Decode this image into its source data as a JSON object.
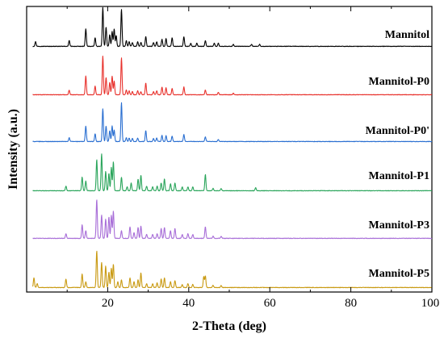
{
  "chart_data": {
    "type": "line",
    "title": "",
    "xlabel": "2-Theta (deg)",
    "ylabel": "Intensity (a.u.)",
    "xlim": [
      0,
      100
    ],
    "x_ticks": [
      20,
      40,
      60,
      80,
      100
    ],
    "x_tick_labels": [
      "20",
      "40",
      "60",
      "80",
      "100"
    ],
    "y_ticks_shown": false,
    "grid": false,
    "legend": "inline labels right of each stacked trace",
    "stacked": true,
    "series": [
      {
        "name": "Mannitol",
        "color": "#000000",
        "baseline": 0.0,
        "peaks": [
          [
            2.2,
            0.12
          ],
          [
            10.5,
            0.15
          ],
          [
            14.6,
            0.45
          ],
          [
            16.9,
            0.22
          ],
          [
            18.8,
            1.0
          ],
          [
            19.6,
            0.5
          ],
          [
            20.5,
            0.3
          ],
          [
            21.1,
            0.38
          ],
          [
            21.6,
            0.45
          ],
          [
            22.1,
            0.28
          ],
          [
            23.4,
            0.95
          ],
          [
            24.6,
            0.15
          ],
          [
            25.3,
            0.12
          ],
          [
            26.1,
            0.1
          ],
          [
            27.4,
            0.12
          ],
          [
            28.2,
            0.1
          ],
          [
            29.4,
            0.25
          ],
          [
            31.3,
            0.1
          ],
          [
            32.1,
            0.12
          ],
          [
            33.4,
            0.18
          ],
          [
            34.4,
            0.2
          ],
          [
            35.9,
            0.22
          ],
          [
            38.8,
            0.25
          ],
          [
            40.5,
            0.08
          ],
          [
            42.0,
            0.08
          ],
          [
            44.1,
            0.15
          ],
          [
            46.3,
            0.08
          ],
          [
            47.3,
            0.08
          ],
          [
            51.0,
            0.05
          ],
          [
            55.5,
            0.05
          ],
          [
            57.5,
            0.05
          ]
        ]
      },
      {
        "name": "Mannitol-P0",
        "color": "#e8312c",
        "baseline": 1.0,
        "peaks": [
          [
            10.5,
            0.12
          ],
          [
            14.6,
            0.48
          ],
          [
            16.9,
            0.22
          ],
          [
            18.8,
            1.0
          ],
          [
            19.6,
            0.45
          ],
          [
            20.5,
            0.32
          ],
          [
            21.1,
            0.48
          ],
          [
            21.6,
            0.35
          ],
          [
            23.4,
            0.95
          ],
          [
            24.6,
            0.12
          ],
          [
            25.3,
            0.1
          ],
          [
            26.1,
            0.08
          ],
          [
            27.4,
            0.1
          ],
          [
            28.2,
            0.08
          ],
          [
            29.4,
            0.3
          ],
          [
            31.3,
            0.08
          ],
          [
            32.1,
            0.1
          ],
          [
            33.4,
            0.2
          ],
          [
            34.4,
            0.18
          ],
          [
            35.9,
            0.16
          ],
          [
            38.8,
            0.2
          ],
          [
            44.1,
            0.12
          ],
          [
            47.3,
            0.06
          ],
          [
            51.0,
            0.04
          ]
        ]
      },
      {
        "name": "Mannitol-P0'",
        "color": "#2a6fd1",
        "baseline": 2.0,
        "peaks": [
          [
            10.5,
            0.1
          ],
          [
            14.6,
            0.4
          ],
          [
            16.9,
            0.2
          ],
          [
            18.8,
            0.85
          ],
          [
            19.6,
            0.4
          ],
          [
            20.5,
            0.28
          ],
          [
            21.1,
            0.4
          ],
          [
            21.6,
            0.3
          ],
          [
            23.4,
            1.0
          ],
          [
            24.6,
            0.1
          ],
          [
            25.3,
            0.09
          ],
          [
            26.1,
            0.08
          ],
          [
            27.4,
            0.09
          ],
          [
            29.4,
            0.28
          ],
          [
            31.3,
            0.08
          ],
          [
            32.1,
            0.09
          ],
          [
            33.4,
            0.16
          ],
          [
            34.4,
            0.15
          ],
          [
            35.9,
            0.14
          ],
          [
            38.8,
            0.18
          ],
          [
            44.1,
            0.12
          ],
          [
            47.3,
            0.05
          ]
        ]
      },
      {
        "name": "Mannitol-P1",
        "color": "#2aa55b",
        "baseline": 3.0,
        "peaks": [
          [
            9.7,
            0.12
          ],
          [
            13.7,
            0.35
          ],
          [
            14.6,
            0.25
          ],
          [
            17.3,
            0.8
          ],
          [
            18.5,
            0.95
          ],
          [
            19.5,
            0.5
          ],
          [
            20.3,
            0.45
          ],
          [
            20.9,
            0.6
          ],
          [
            21.4,
            0.75
          ],
          [
            23.4,
            0.35
          ],
          [
            24.8,
            0.1
          ],
          [
            25.8,
            0.2
          ],
          [
            27.5,
            0.3
          ],
          [
            28.2,
            0.4
          ],
          [
            29.6,
            0.12
          ],
          [
            31.1,
            0.1
          ],
          [
            32.2,
            0.12
          ],
          [
            33.2,
            0.2
          ],
          [
            34.0,
            0.3
          ],
          [
            35.5,
            0.18
          ],
          [
            36.6,
            0.2
          ],
          [
            38.4,
            0.1
          ],
          [
            39.8,
            0.1
          ],
          [
            41.0,
            0.1
          ],
          [
            44.1,
            0.42
          ],
          [
            46.0,
            0.06
          ],
          [
            48.0,
            0.06
          ],
          [
            56.5,
            0.08
          ]
        ]
      },
      {
        "name": "Mannitol-P3",
        "color": "#a86ed8",
        "baseline": 4.0,
        "peaks": [
          [
            9.7,
            0.12
          ],
          [
            13.7,
            0.35
          ],
          [
            14.6,
            0.2
          ],
          [
            17.3,
            1.0
          ],
          [
            18.5,
            0.6
          ],
          [
            19.5,
            0.5
          ],
          [
            20.3,
            0.55
          ],
          [
            20.9,
            0.6
          ],
          [
            21.4,
            0.7
          ],
          [
            23.4,
            0.2
          ],
          [
            25.5,
            0.3
          ],
          [
            26.5,
            0.15
          ],
          [
            27.5,
            0.28
          ],
          [
            28.2,
            0.32
          ],
          [
            29.6,
            0.1
          ],
          [
            31.1,
            0.1
          ],
          [
            32.2,
            0.12
          ],
          [
            33.2,
            0.25
          ],
          [
            34.0,
            0.28
          ],
          [
            35.5,
            0.2
          ],
          [
            36.6,
            0.25
          ],
          [
            38.4,
            0.1
          ],
          [
            39.8,
            0.12
          ],
          [
            41.0,
            0.1
          ],
          [
            44.1,
            0.3
          ],
          [
            46.0,
            0.06
          ],
          [
            48.0,
            0.05
          ]
        ]
      },
      {
        "name": "Mannitol-P5",
        "color": "#c99a12",
        "baseline": 5.0,
        "peaks": [
          [
            1.8,
            0.25
          ],
          [
            2.6,
            0.1
          ],
          [
            9.7,
            0.22
          ],
          [
            13.7,
            0.35
          ],
          [
            14.6,
            0.15
          ],
          [
            17.3,
            0.95
          ],
          [
            18.5,
            0.65
          ],
          [
            19.5,
            0.55
          ],
          [
            20.3,
            0.4
          ],
          [
            20.9,
            0.5
          ],
          [
            21.4,
            0.6
          ],
          [
            22.5,
            0.15
          ],
          [
            23.4,
            0.2
          ],
          [
            25.5,
            0.25
          ],
          [
            26.5,
            0.15
          ],
          [
            27.5,
            0.2
          ],
          [
            28.2,
            0.38
          ],
          [
            29.6,
            0.1
          ],
          [
            31.1,
            0.1
          ],
          [
            32.2,
            0.12
          ],
          [
            33.2,
            0.22
          ],
          [
            34.0,
            0.25
          ],
          [
            35.5,
            0.15
          ],
          [
            36.6,
            0.18
          ],
          [
            38.4,
            0.08
          ],
          [
            39.8,
            0.1
          ],
          [
            41.0,
            0.08
          ],
          [
            43.7,
            0.28
          ],
          [
            44.1,
            0.3
          ],
          [
            46.0,
            0.06
          ],
          [
            48.0,
            0.05
          ]
        ]
      }
    ]
  }
}
